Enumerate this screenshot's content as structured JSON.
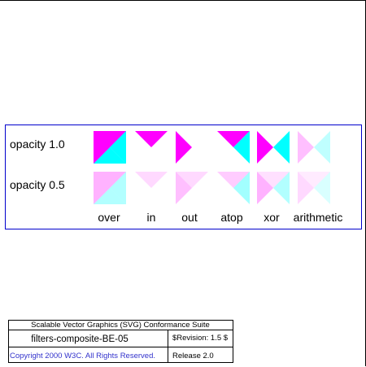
{
  "panel": {
    "rows": [
      {
        "label": "opacity 1.0",
        "opacity": 1.0
      },
      {
        "label": "opacity 0.5",
        "opacity": 0.5
      }
    ],
    "operators": [
      "over",
      "in",
      "out",
      "atop",
      "xor",
      "arithmetic"
    ]
  },
  "legend": {
    "suite": "Scalable Vector Graphics (SVG) Conformance Suite",
    "test_name": "filters-composite-BE-05",
    "revision": "$Revision: 1.5 $",
    "copyright": "Copyright 2000 W3C. All Rights Reserved.",
    "release": "Release 2.0"
  },
  "colors": {
    "magenta": "#ff00ff",
    "cyan": "#00ffff",
    "panel_border": "#0000cc",
    "copyright_text": "#3333cc",
    "text": "#000000"
  }
}
